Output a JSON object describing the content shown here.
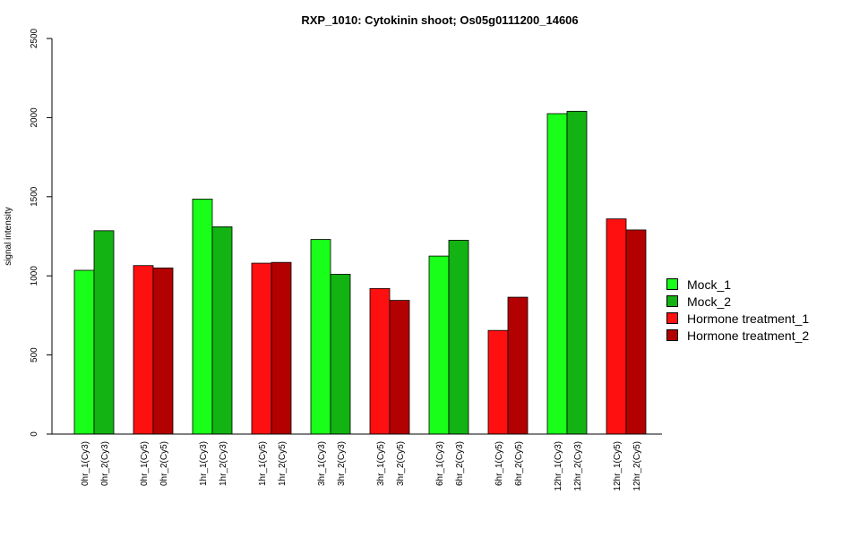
{
  "chart_data": {
    "type": "bar",
    "title": "RXP_1010: Cytokinin shoot; Os05g0111200_14606",
    "ylabel": "signal intensity",
    "xlabel": "",
    "ylim": [
      0,
      2500
    ],
    "yticks": [
      0,
      500,
      1000,
      1500,
      2000,
      2500
    ],
    "grid": false,
    "legend_position": "right",
    "categories": [
      "0hr_1(Cy3)",
      "0hr_2(Cy3)",
      "0hr_1(Cy5)",
      "0hr_2(Cy5)",
      "1hr_1(Cy3)",
      "1hr_2(Cy3)",
      "1hr_1(Cy5)",
      "1hr_2(Cy5)",
      "3hr_1(Cy3)",
      "3hr_2(Cy3)",
      "3hr_1(Cy5)",
      "3hr_2(Cy5)",
      "6hr_1(Cy3)",
      "6hr_2(Cy3)",
      "6hr_1(Cy5)",
      "6hr_2(Cy5)",
      "12hr_1(Cy3)",
      "12hr_2(Cy3)",
      "12hr_1(Cy5)",
      "12hr_2(Cy5)"
    ],
    "values": [
      1035,
      1285,
      1065,
      1050,
      1485,
      1310,
      1080,
      1085,
      1230,
      1010,
      920,
      845,
      1125,
      1225,
      655,
      865,
      2025,
      2040,
      1360,
      1290
    ],
    "bar_series": [
      "Mock_1",
      "Mock_2",
      "Hormone treatment_1",
      "Hormone treatment_2",
      "Mock_1",
      "Mock_2",
      "Hormone treatment_1",
      "Hormone treatment_2",
      "Mock_1",
      "Mock_2",
      "Hormone treatment_1",
      "Hormone treatment_2",
      "Mock_1",
      "Mock_2",
      "Hormone treatment_1",
      "Hormone treatment_2",
      "Mock_1",
      "Mock_2",
      "Hormone treatment_1",
      "Hormone treatment_2"
    ],
    "series": [
      {
        "name": "Mock_1",
        "color": "#1aff1a"
      },
      {
        "name": "Mock_2",
        "color": "#12b312"
      },
      {
        "name": "Hormone treatment_1",
        "color": "#ff1010"
      },
      {
        "name": "Hormone treatment_2",
        "color": "#b30000"
      }
    ]
  }
}
